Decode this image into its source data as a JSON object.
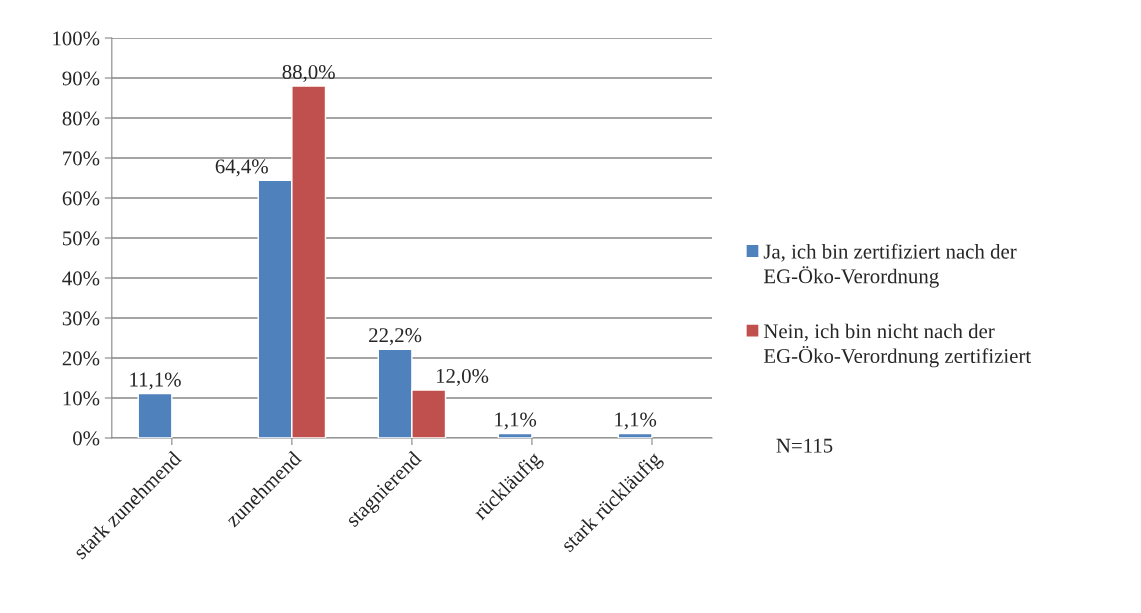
{
  "chart_data": {
    "type": "bar",
    "categories": [
      "stark zunehmend",
      "zunehmend",
      "stagnierend",
      "rückläufig",
      "stark rückläufig"
    ],
    "series": [
      {
        "name": "Ja, ich bin zertifiziert nach der EG-Öko-Verordnung",
        "color": "#4f81bd",
        "values": [
          11.1,
          64.4,
          22.2,
          1.1,
          1.1
        ],
        "value_labels": [
          "11,1%",
          "64,4%",
          "22,2%",
          "1,1%",
          "1,1%"
        ]
      },
      {
        "name": "Nein, ich bin nicht nach der EG-Öko-Verordnung zertifiziert",
        "color": "#c0504d",
        "values": [
          null,
          88.0,
          12.0,
          null,
          null
        ],
        "value_labels": [
          null,
          "88,0%",
          "12,0%",
          null,
          null
        ]
      }
    ],
    "ylim": [
      0,
      100
    ],
    "yticks": [
      {
        "value": 0,
        "label": "0%"
      },
      {
        "value": 10,
        "label": "10%"
      },
      {
        "value": 20,
        "label": "20%"
      },
      {
        "value": 30,
        "label": "30%"
      },
      {
        "value": 40,
        "label": "40%"
      },
      {
        "value": 50,
        "label": "50%"
      },
      {
        "value": 60,
        "label": "60%"
      },
      {
        "value": 70,
        "label": "70%"
      },
      {
        "value": 80,
        "label": "80%"
      },
      {
        "value": 90,
        "label": "90%"
      },
      {
        "value": 100,
        "label": "100%"
      }
    ],
    "grid": "y",
    "legend": "right",
    "annotations": [
      "N=115"
    ]
  }
}
